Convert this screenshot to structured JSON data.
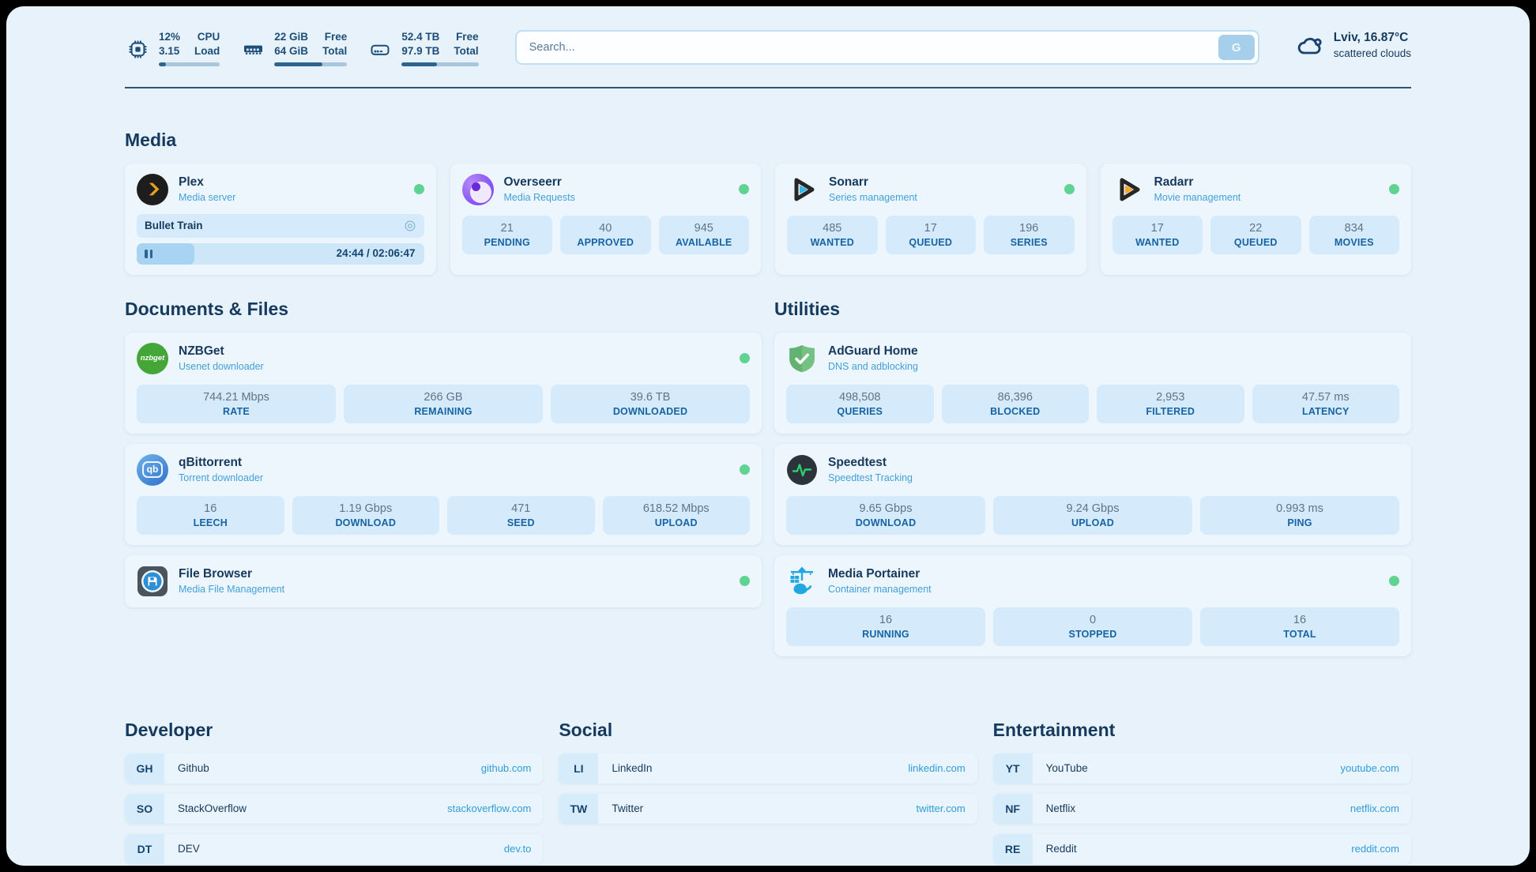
{
  "topbar": {
    "cpu": {
      "line1": "12%",
      "line2": "3.15",
      "label1": "CPU",
      "label2": "Load",
      "progress": 12
    },
    "ram": {
      "line1": "22 GiB",
      "line2": "64 GiB",
      "label1": "Free",
      "label2": "Total",
      "progress": 66
    },
    "disk": {
      "line1": "52.4 TB",
      "line2": "97.9 TB",
      "label1": "Free",
      "label2": "Total",
      "progress": 46
    },
    "search": {
      "placeholder": "Search...",
      "button_label": "G"
    },
    "weather": {
      "location": "Lviv, 16.87°C",
      "condition": "scattered clouds"
    }
  },
  "media": {
    "title": "Media",
    "plex": {
      "title": "Plex",
      "subtitle": "Media server",
      "player": {
        "track": "Bullet Train",
        "time": "24:44 / 02:06:47",
        "progress": 20
      }
    },
    "overseerr": {
      "title": "Overseerr",
      "subtitle": "Media Requests",
      "stats": [
        {
          "value": "21",
          "label": "PENDING"
        },
        {
          "value": "40",
          "label": "APPROVED"
        },
        {
          "value": "945",
          "label": "AVAILABLE"
        }
      ]
    },
    "sonarr": {
      "title": "Sonarr",
      "subtitle": "Series management",
      "stats": [
        {
          "value": "485",
          "label": "WANTED"
        },
        {
          "value": "17",
          "label": "QUEUED"
        },
        {
          "value": "196",
          "label": "SERIES"
        }
      ]
    },
    "radarr": {
      "title": "Radarr",
      "subtitle": "Movie management",
      "stats": [
        {
          "value": "17",
          "label": "WANTED"
        },
        {
          "value": "22",
          "label": "QUEUED"
        },
        {
          "value": "834",
          "label": "MOVIES"
        }
      ]
    }
  },
  "documents": {
    "title": "Documents & Files",
    "nzbget": {
      "title": "NZBGet",
      "subtitle": "Usenet downloader",
      "stats": [
        {
          "value": "744.21 Mbps",
          "label": "RATE"
        },
        {
          "value": "266 GB",
          "label": "REMAINING"
        },
        {
          "value": "39.6 TB",
          "label": "DOWNLOADED"
        }
      ]
    },
    "qbittorrent": {
      "title": "qBittorrent",
      "subtitle": "Torrent downloader",
      "stats": [
        {
          "value": "16",
          "label": "LEECH"
        },
        {
          "value": "1.19 Gbps",
          "label": "DOWNLOAD"
        },
        {
          "value": "471",
          "label": "SEED"
        },
        {
          "value": "618.52 Mbps",
          "label": "UPLOAD"
        }
      ]
    },
    "filebrowser": {
      "title": "File Browser",
      "subtitle": "Media File Management"
    }
  },
  "utilities": {
    "title": "Utilities",
    "adguard": {
      "title": "AdGuard Home",
      "subtitle": "DNS and adblocking",
      "stats": [
        {
          "value": "498,508",
          "label": "QUERIES"
        },
        {
          "value": "86,396",
          "label": "BLOCKED"
        },
        {
          "value": "2,953",
          "label": "FILTERED"
        },
        {
          "value": "47.57 ms",
          "label": "LATENCY"
        }
      ]
    },
    "speedtest": {
      "title": "Speedtest",
      "subtitle": "Speedtest Tracking",
      "stats": [
        {
          "value": "9.65 Gbps",
          "label": "DOWNLOAD"
        },
        {
          "value": "9.24 Gbps",
          "label": "UPLOAD"
        },
        {
          "value": "0.993 ms",
          "label": "PING"
        }
      ]
    },
    "portainer": {
      "title": "Media Portainer",
      "subtitle": "Container management",
      "stats": [
        {
          "value": "16",
          "label": "RUNNING"
        },
        {
          "value": "0",
          "label": "STOPPED"
        },
        {
          "value": "16",
          "label": "TOTAL"
        }
      ]
    }
  },
  "bookmarks": {
    "developer": {
      "title": "Developer",
      "links": [
        {
          "abbr": "GH",
          "name": "Github",
          "url": "github.com"
        },
        {
          "abbr": "SO",
          "name": "StackOverflow",
          "url": "stackoverflow.com"
        },
        {
          "abbr": "DT",
          "name": "DEV",
          "url": "dev.to"
        }
      ]
    },
    "social": {
      "title": "Social",
      "links": [
        {
          "abbr": "LI",
          "name": "LinkedIn",
          "url": "linkedin.com"
        },
        {
          "abbr": "TW",
          "name": "Twitter",
          "url": "twitter.com"
        }
      ]
    },
    "entertainment": {
      "title": "Entertainment",
      "links": [
        {
          "abbr": "YT",
          "name": "YouTube",
          "url": "youtube.com"
        },
        {
          "abbr": "NF",
          "name": "Netflix",
          "url": "netflix.com"
        },
        {
          "abbr": "RE",
          "name": "Reddit",
          "url": "reddit.com"
        }
      ]
    }
  },
  "icons": {
    "nzbget_label": "nzbget",
    "qb_label": "qb"
  },
  "colors": {
    "accent": "#2f9ddb",
    "status_online": "#5fd391",
    "progress_fill": "#2c6591",
    "page_bg": "#e7f2fb"
  }
}
